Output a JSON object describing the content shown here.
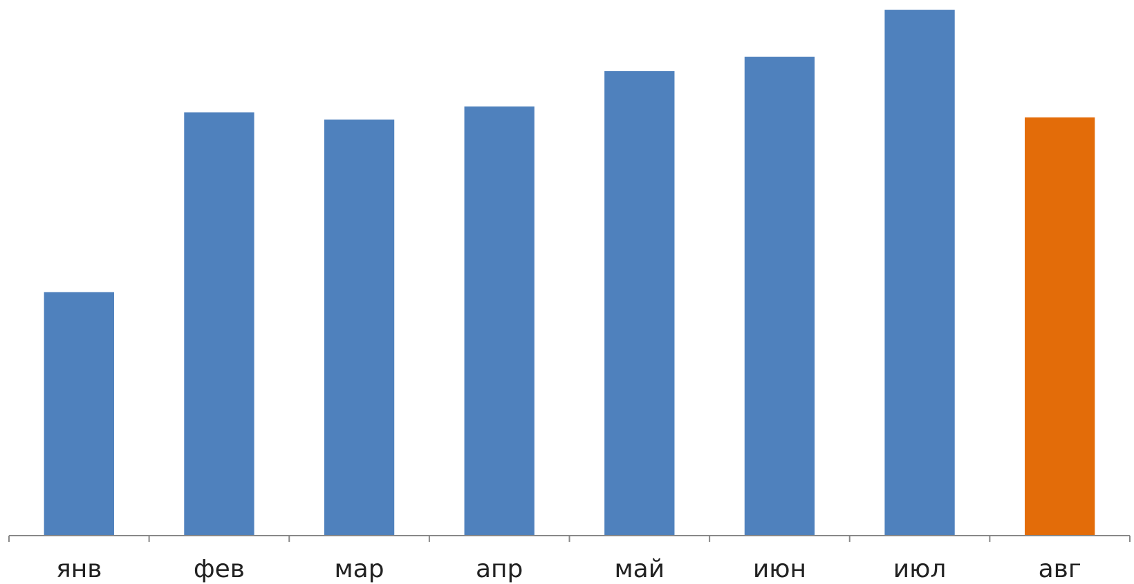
{
  "chart_data": {
    "type": "bar",
    "categories": [
      "янв",
      "фев",
      "мар",
      "апр",
      "май",
      "июн",
      "июл",
      "авг"
    ],
    "values": [
      337,
      586,
      576,
      594,
      643,
      663,
      728,
      579
    ],
    "colors": [
      "#4f81bd",
      "#4f81bd",
      "#4f81bd",
      "#4f81bd",
      "#4f81bd",
      "#4f81bd",
      "#4f81bd",
      "#e36c09"
    ],
    "ylim": [
      0,
      730
    ]
  }
}
